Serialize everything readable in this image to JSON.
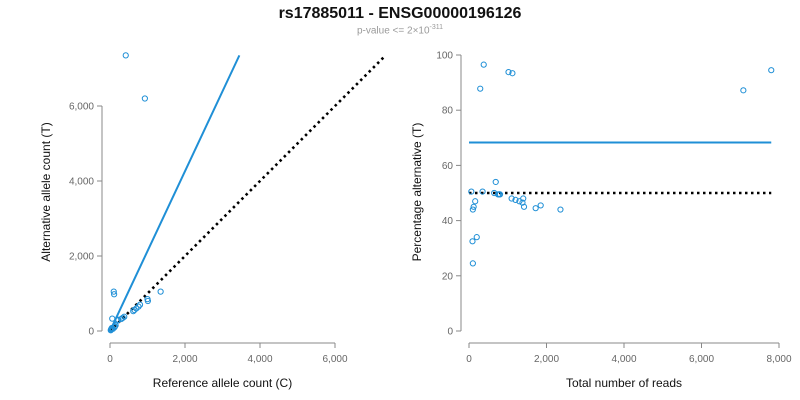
{
  "title": "rs17885011 - ENSG00000196126",
  "subtitle": {
    "text": "p-value <= 2×10",
    "exponent": "-311"
  },
  "colors": {
    "points": "#1f8fd6",
    "fit_line": "#1f8fd6",
    "reference_line": "#000000",
    "axis": "#888888"
  },
  "chart_data": [
    {
      "type": "scatter",
      "xlabel": "Reference allele count (C)",
      "ylabel": "Alternative allele count (T)",
      "xlim": [
        0,
        6000
      ],
      "ylim": [
        0,
        7400
      ],
      "xticks": [
        0,
        2000,
        4000,
        6000
      ],
      "xtick_labels": [
        "0",
        "2,000",
        "4,000",
        "6,000"
      ],
      "yticks": [
        0,
        2000,
        4000,
        6000
      ],
      "ytick_labels": [
        "0",
        "2,000",
        "4,000",
        "6,000"
      ],
      "grid": false,
      "points": [
        [
          420,
          7350
        ],
        [
          930,
          6200
        ],
        [
          100,
          1050
        ],
        [
          110,
          980
        ],
        [
          1350,
          1050
        ],
        [
          1000,
          850
        ],
        [
          1010,
          800
        ],
        [
          800,
          700
        ],
        [
          760,
          650
        ],
        [
          700,
          600
        ],
        [
          650,
          560
        ],
        [
          620,
          530
        ],
        [
          380,
          380
        ],
        [
          340,
          350
        ],
        [
          300,
          320
        ],
        [
          220,
          300
        ],
        [
          200,
          280
        ],
        [
          150,
          150
        ],
        [
          130,
          120
        ],
        [
          120,
          100
        ],
        [
          60,
          330
        ],
        [
          40,
          60
        ],
        [
          30,
          40
        ],
        [
          20,
          20
        ],
        [
          80,
          60
        ],
        [
          50,
          80
        ]
      ],
      "lines": [
        {
          "kind": "fit",
          "style": "solid",
          "from": [
            0,
            0
          ],
          "to": [
            3450,
            7350
          ]
        },
        {
          "kind": "reference",
          "style": "dotted",
          "from": [
            0,
            0
          ],
          "to": [
            7300,
            7300
          ]
        }
      ]
    },
    {
      "type": "scatter",
      "xlabel": "Total number of reads",
      "ylabel": "Percentage alternative (T)",
      "xlim": [
        0,
        8000
      ],
      "ylim": [
        0,
        100
      ],
      "xticks": [
        0,
        2000,
        4000,
        6000,
        8000
      ],
      "xtick_labels": [
        "0",
        "2,000",
        "4,000",
        "6,000",
        "8,000"
      ],
      "yticks": [
        0,
        20,
        40,
        60,
        80,
        100
      ],
      "ytick_labels": [
        "0",
        "20",
        "40",
        "60",
        "80",
        "100"
      ],
      "grid": false,
      "points": [
        [
          380,
          96.5
        ],
        [
          1020,
          93.8
        ],
        [
          1120,
          93.4
        ],
        [
          7800,
          94.5
        ],
        [
          7080,
          87.2
        ],
        [
          290,
          87.8
        ],
        [
          690,
          54
        ],
        [
          650,
          50
        ],
        [
          750,
          49.5
        ],
        [
          780,
          49.5
        ],
        [
          800,
          49.5
        ],
        [
          1100,
          48
        ],
        [
          1200,
          47.5
        ],
        [
          1400,
          48
        ],
        [
          1380,
          46.5
        ],
        [
          1300,
          47
        ],
        [
          1420,
          45
        ],
        [
          1720,
          44.5
        ],
        [
          1850,
          45.5
        ],
        [
          2360,
          44
        ],
        [
          350,
          50.5
        ],
        [
          120,
          45
        ],
        [
          160,
          47
        ],
        [
          100,
          44
        ],
        [
          90,
          32.5
        ],
        [
          200,
          34
        ],
        [
          100,
          24.5
        ],
        [
          60,
          50.5
        ]
      ],
      "lines": [
        {
          "kind": "fit",
          "style": "solid",
          "y": 68.3,
          "x_range": [
            0,
            7800
          ]
        },
        {
          "kind": "reference",
          "style": "dotted",
          "y": 50,
          "x_range": [
            0,
            7800
          ]
        }
      ]
    }
  ]
}
